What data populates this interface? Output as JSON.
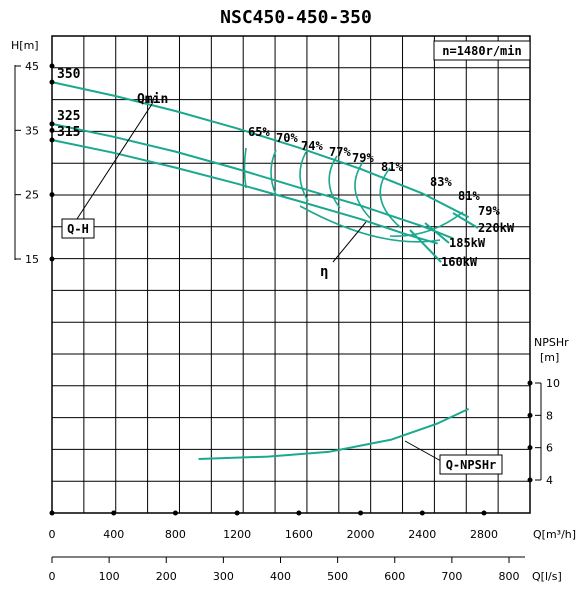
{
  "chart_data": {
    "type": "line",
    "title": "NSC450-450-350",
    "speed_label": "n=1480r/min",
    "colors": {
      "curve": "#1aa98f",
      "grid": "#000000",
      "label": "#000000"
    },
    "grid": true,
    "h_axis": {
      "label": "H[m]",
      "ticks": [
        "45",
        "35",
        "25",
        "15"
      ],
      "ylim": [
        15,
        45
      ]
    },
    "npsh_axis": {
      "label_line1": "NPSHr",
      "label_line2": "[m]",
      "ticks": [
        "10",
        "8",
        "6",
        "4"
      ],
      "ylim": [
        4,
        10
      ]
    },
    "flow_m3h_axis": {
      "label": "Q[m³/h]",
      "ticks": [
        "0",
        "400",
        "800",
        "1200",
        "1600",
        "2000",
        "2400",
        "2800"
      ],
      "xlim": [
        0,
        3000
      ]
    },
    "flow_ls_axis": {
      "label": "Q[l/s]",
      "ticks": [
        "0",
        "100",
        "200",
        "300",
        "400",
        "500",
        "600",
        "700",
        "800"
      ]
    },
    "series": [
      {
        "name": "350",
        "kind": "QH",
        "x": [
          0,
          400,
          800,
          1200,
          1600,
          2000,
          2400,
          2700
        ],
        "y": [
          42.5,
          40.4,
          38.0,
          35.3,
          32.3,
          29.0,
          25.2,
          21.5
        ]
      },
      {
        "name": "325",
        "kind": "QH",
        "x": [
          0,
          400,
          800,
          1200,
          1600,
          2000,
          2400,
          2600
        ],
        "y": [
          36.0,
          34.0,
          31.7,
          29.0,
          26.1,
          23.3,
          20.1,
          18.2
        ]
      },
      {
        "name": "315",
        "kind": "QH",
        "x": [
          0,
          400,
          800,
          1200,
          1600,
          2000,
          2300,
          2500
        ],
        "y": [
          33.5,
          31.5,
          29.2,
          26.7,
          24.0,
          21.2,
          18.8,
          17.4
        ]
      },
      {
        "name": "Q-NPSHr",
        "kind": "NPSH",
        "x": [
          950,
          1400,
          1800,
          2200,
          2500,
          2700
        ],
        "y": [
          5.3,
          5.45,
          5.75,
          6.5,
          7.5,
          8.4
        ]
      }
    ],
    "efficiency_labels": [
      "65%",
      "70%",
      "74%",
      "77%",
      "79%",
      "81%",
      "83%",
      "81%",
      "79%"
    ],
    "power_labels": [
      "220kW",
      "185kW",
      "160kW"
    ],
    "annotations": {
      "qmin": "Qmin",
      "qh": "Q-H",
      "eta": "η",
      "npsh": "Q-NPSHr"
    }
  }
}
